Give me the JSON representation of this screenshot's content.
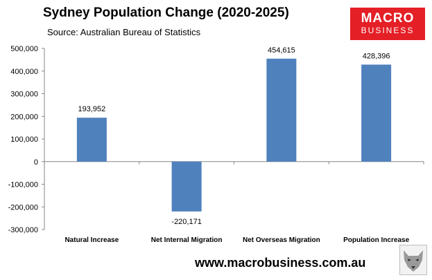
{
  "header": {
    "title": "Sydney Population Change (2020-2025)",
    "subtitle": "Source: Australian Bureau of Statistics"
  },
  "logo": {
    "line1": "MACRO",
    "line2": "BUSINESS"
  },
  "footer": {
    "website": "www.macrobusiness.com.au"
  },
  "colors": {
    "bar": "#4f81bd",
    "axis": "#868686",
    "grid": "#d9d9d9"
  },
  "chart_data": {
    "type": "bar",
    "title": "Sydney Population Change (2020-2025)",
    "subtitle": "Source: Australian Bureau of Statistics",
    "categories": [
      "Natural Increase",
      "Net Internal Migration",
      "Net Overseas Migration",
      "Population Increase"
    ],
    "values": [
      193952,
      -220171,
      454615,
      428396
    ],
    "value_labels": [
      "193,952",
      "-220,171",
      "454,615",
      "428,396"
    ],
    "ylim": [
      -300000,
      500000
    ],
    "yticks": [
      500000,
      400000,
      300000,
      200000,
      100000,
      0,
      -100000,
      -200000,
      -300000
    ],
    "ytick_labels": [
      "500,000",
      "400,000",
      "300,000",
      "200,000",
      "100,000",
      "0",
      "-100,000",
      "-200,000",
      "-300,000"
    ],
    "xlabel": "",
    "ylabel": "",
    "grid": false,
    "legend": "none"
  }
}
